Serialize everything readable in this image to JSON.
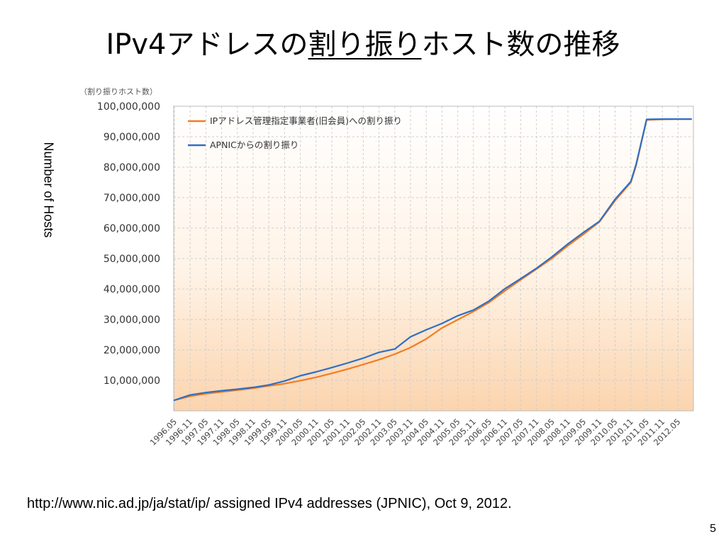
{
  "slide": {
    "title_prefix": "IPv4アドレスの",
    "title_underlined": "割り振り",
    "title_suffix": "ホスト数の推移",
    "side_ylabel": "Number of Hosts",
    "source": "http://www.nic.ad.jp/ja/stat/ip/ assigned IPv4 addresses (JPNIC), Oct 9, 2012.",
    "page_number": "5"
  },
  "colors": {
    "jpnic": "#f47c20",
    "apnic": "#2f6fc4",
    "grid": "#cfcfcf",
    "fill_top": "#ffffff",
    "fill_bottom": "#fbd4ae"
  },
  "chart_data": {
    "type": "line",
    "unit_label": "（割り振りホスト数）",
    "ylim": [
      0,
      100000000
    ],
    "y_ticks": [
      10000000,
      20000000,
      30000000,
      40000000,
      50000000,
      60000000,
      70000000,
      80000000,
      90000000,
      100000000
    ],
    "y_tick_labels": [
      "10,000,000",
      "20,000,000",
      "30,000,000",
      "40,000,000",
      "50,000,000",
      "60,000,000",
      "70,000,000",
      "80,000,000",
      "90,000,000",
      "100,000,000"
    ],
    "x_tick_labels": [
      "1996.05",
      "1996.11",
      "1997.05",
      "1997.11",
      "1998.05",
      "1998.11",
      "1999.05",
      "1999.11",
      "2000.05",
      "2000.11",
      "2001.05",
      "2001.11",
      "2002.05",
      "2002.11",
      "2003.05",
      "2003.11",
      "2004.05",
      "2004.11",
      "2005.05",
      "2005.11",
      "2006.05",
      "2006.11",
      "2007.05",
      "2007.11",
      "2008.05",
      "2008.11",
      "2009.05",
      "2009.11",
      "2010.05",
      "2010.11",
      "2011.05",
      "2011.11",
      "2012.05"
    ],
    "legend_position": "top-left",
    "grid": true,
    "series": [
      {
        "name": "IPアドレス管理指定事業者(旧会員)への割り振り",
        "color_key": "jpnic",
        "x": [
          "1996.05",
          "1996.11",
          "1997.05",
          "1997.11",
          "1998.05",
          "1998.11",
          "1999.05",
          "1999.11",
          "2000.05",
          "2000.11",
          "2001.05",
          "2001.11",
          "2002.05",
          "2002.11",
          "2003.05",
          "2003.11",
          "2004.05",
          "2004.11",
          "2005.05",
          "2005.11",
          "2006.05",
          "2006.11",
          "2007.05",
          "2007.11",
          "2008.05",
          "2008.11",
          "2009.05",
          "2009.11",
          "2010.05",
          "2010.11",
          "2011.01",
          "2011.05",
          "2011.11",
          "2012.05",
          "2012.10"
        ],
        "values": [
          3500000,
          4800000,
          5600000,
          6200000,
          6800000,
          7400000,
          8200000,
          8900000,
          9900000,
          11000000,
          12300000,
          13700000,
          15200000,
          16800000,
          18600000,
          20800000,
          23600000,
          27200000,
          29900000,
          32600000,
          35600000,
          39400000,
          43000000,
          46500000,
          50100000,
          54200000,
          58000000,
          62000000,
          69000000,
          75000000,
          80500000,
          95500000,
          95700000,
          95800000,
          95800000
        ]
      },
      {
        "name": "APNICからの割り振り",
        "color_key": "apnic",
        "x": [
          "1996.05",
          "1996.11",
          "1997.05",
          "1997.11",
          "1998.05",
          "1998.11",
          "1999.05",
          "1999.11",
          "2000.05",
          "2000.11",
          "2001.05",
          "2001.11",
          "2002.05",
          "2002.11",
          "2003.05",
          "2003.11",
          "2004.05",
          "2004.11",
          "2005.05",
          "2005.11",
          "2006.05",
          "2006.11",
          "2007.05",
          "2007.11",
          "2008.05",
          "2008.11",
          "2009.05",
          "2009.11",
          "2010.05",
          "2010.11",
          "2011.01",
          "2011.05",
          "2011.11",
          "2012.05",
          "2012.10"
        ],
        "values": [
          3500000,
          5200000,
          6000000,
          6600000,
          7100000,
          7700000,
          8500000,
          9800000,
          11500000,
          12800000,
          14200000,
          15700000,
          17300000,
          19200000,
          20300000,
          24300000,
          26600000,
          28700000,
          31200000,
          33100000,
          36100000,
          40100000,
          43400000,
          46800000,
          50600000,
          54800000,
          58600000,
          62200000,
          69500000,
          75300000,
          80900000,
          95700000,
          95800000,
          95800000,
          95800000
        ]
      }
    ]
  }
}
